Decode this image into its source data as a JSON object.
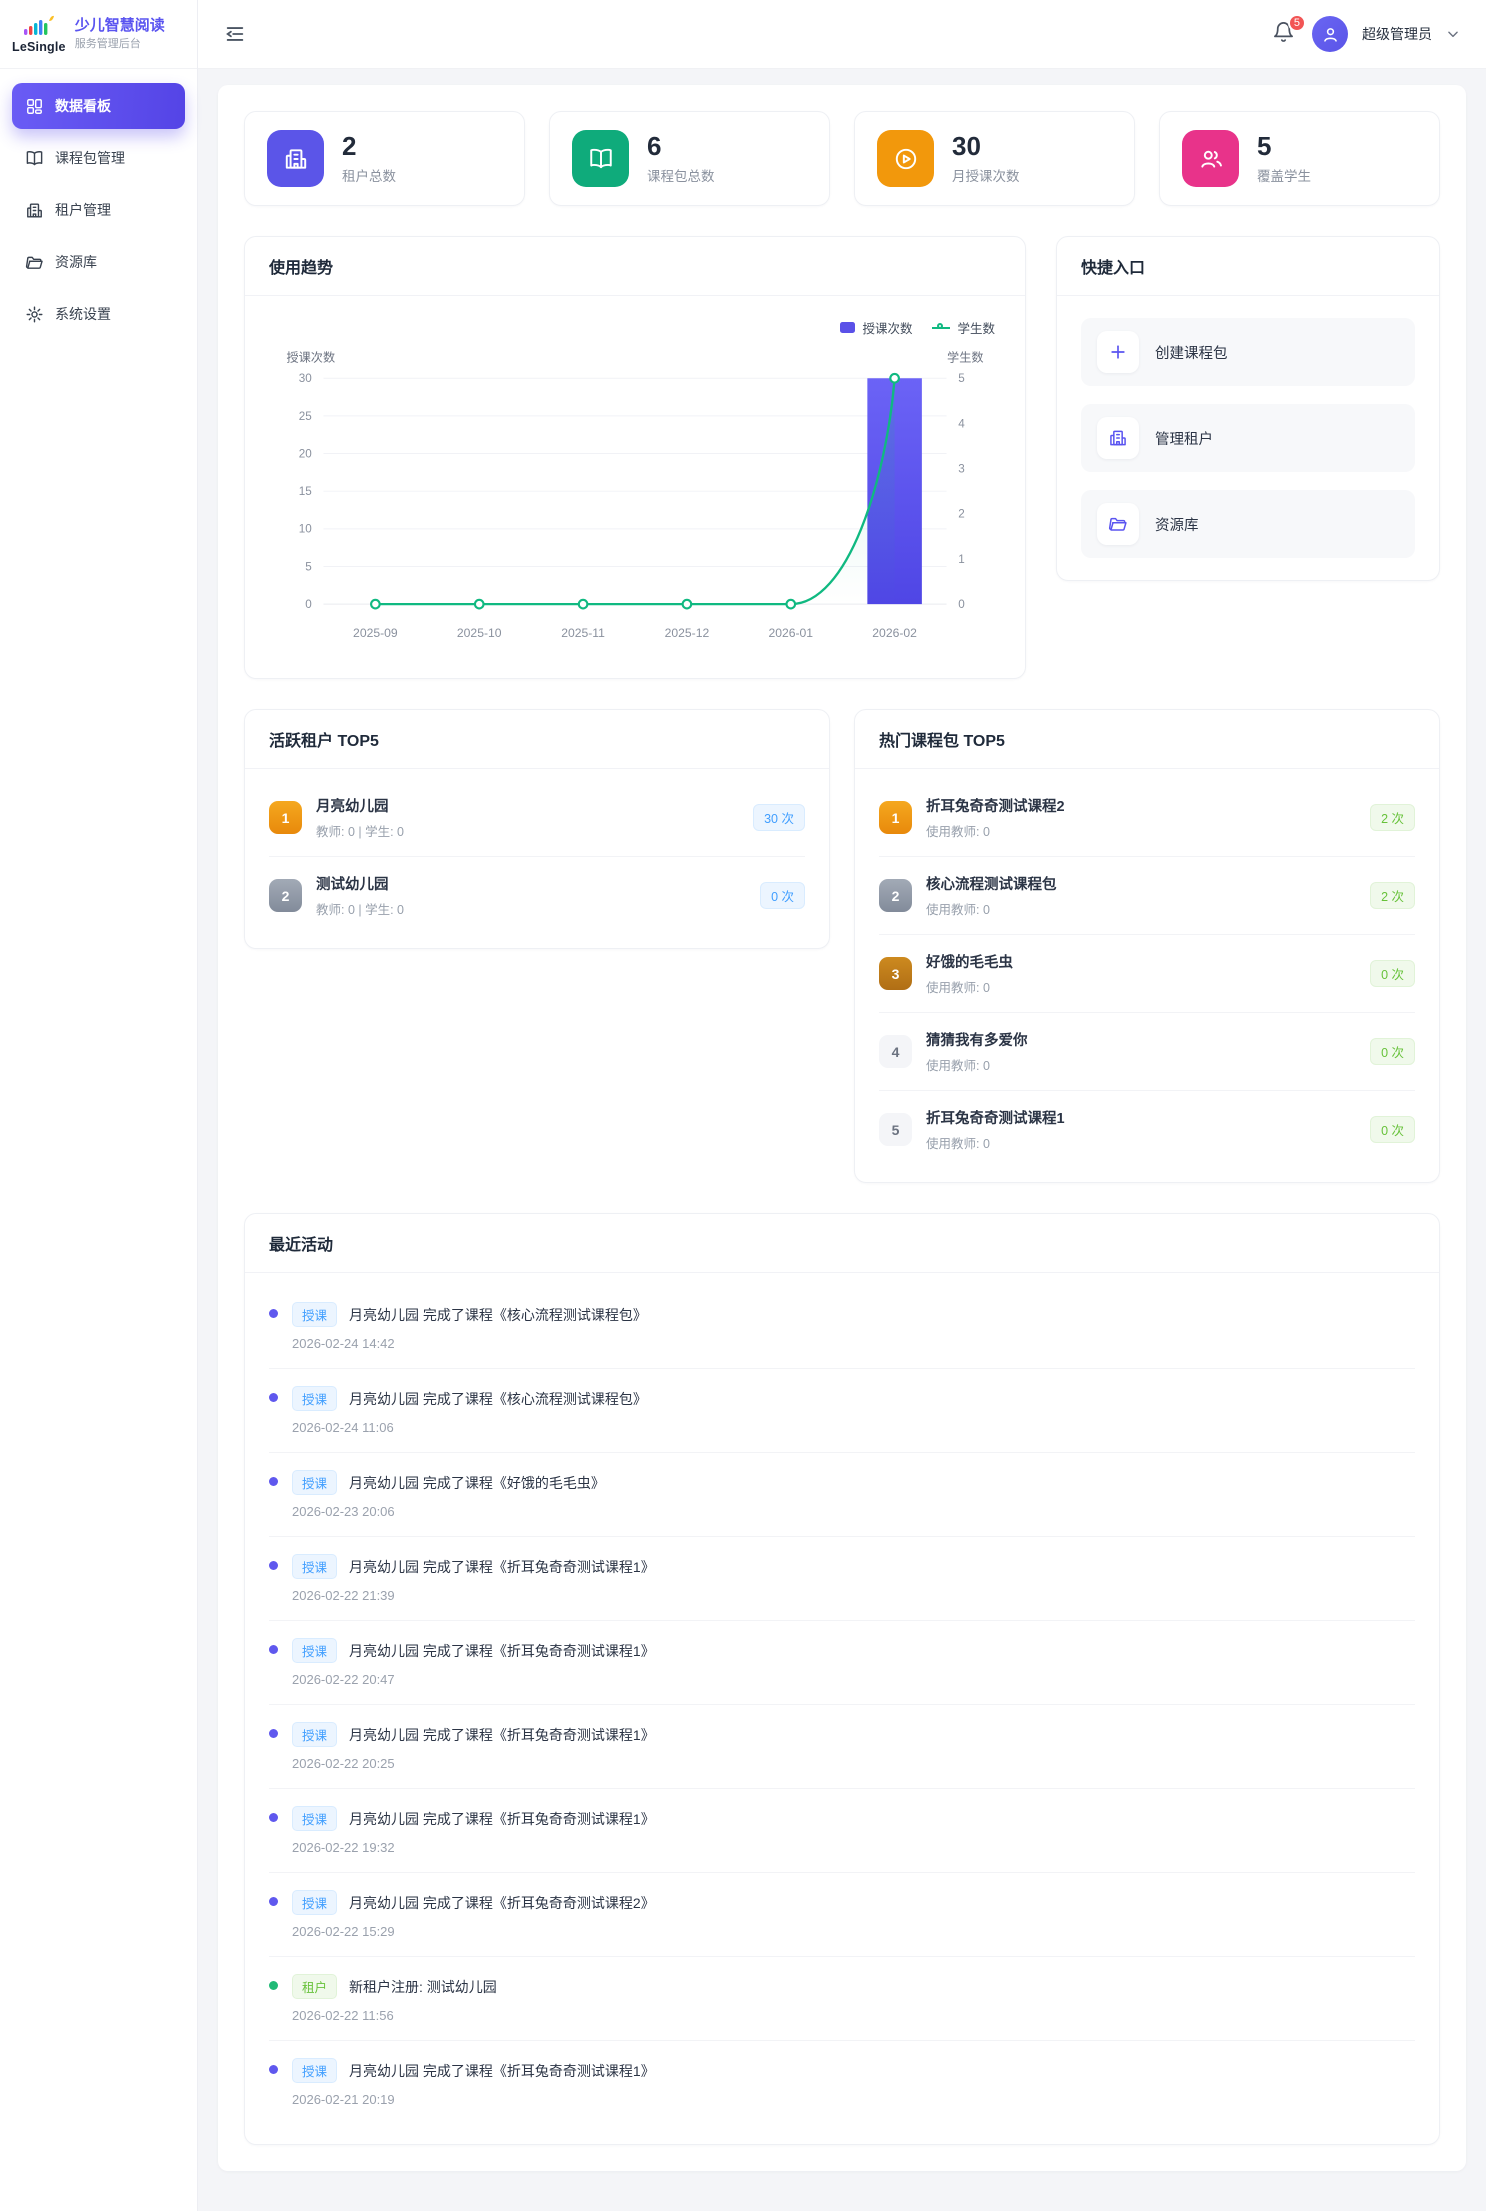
{
  "brand": {
    "logo_text": "LeSingle",
    "title": "少儿智慧阅读",
    "subtitle": "服务管理后台"
  },
  "sidebar": {
    "items": [
      {
        "label": "数据看板",
        "icon": "dashboard-grid",
        "active": true
      },
      {
        "label": "课程包管理",
        "icon": "book",
        "active": false
      },
      {
        "label": "租户管理",
        "icon": "building",
        "active": false
      },
      {
        "label": "资源库",
        "icon": "folder",
        "active": false
      },
      {
        "label": "系统设置",
        "icon": "gear",
        "active": false
      }
    ]
  },
  "header": {
    "notification_count": "5",
    "user_name": "超级管理员"
  },
  "stats": [
    {
      "value": "2",
      "label": "租户总数",
      "icon": "building",
      "color": "#5b55e8"
    },
    {
      "value": "6",
      "label": "课程包总数",
      "icon": "book",
      "color": "#0fab7b"
    },
    {
      "value": "30",
      "label": "月授课次数",
      "icon": "play-circle",
      "color": "#f2980c"
    },
    {
      "value": "5",
      "label": "覆盖学生",
      "icon": "users",
      "color": "#e8338a"
    }
  ],
  "usage_trend_title": "使用趋势",
  "chart_data": {
    "type": "bar",
    "title": "使用趋势",
    "categories": [
      "2025-09",
      "2025-10",
      "2025-11",
      "2025-12",
      "2026-01",
      "2026-02"
    ],
    "series": [
      {
        "name": "授课次数",
        "type": "bar",
        "axis": "left",
        "color": "#5a51e8",
        "values": [
          0,
          0,
          0,
          0,
          0,
          30
        ]
      },
      {
        "name": "学生数",
        "type": "line",
        "axis": "right",
        "color": "#10b981",
        "values": [
          0,
          0,
          0,
          0,
          0,
          5
        ]
      }
    ],
    "left_axis": {
      "label": "授课次数",
      "ticks": [
        0,
        5,
        10,
        15,
        20,
        25,
        30
      ],
      "max": 30
    },
    "right_axis": {
      "label": "学生数",
      "ticks": [
        0,
        1,
        2,
        3,
        4,
        5
      ],
      "max": 5
    },
    "legend_position": "top-right",
    "grid": true
  },
  "quick_entry": {
    "title": "快捷入口",
    "items": [
      {
        "label": "创建课程包",
        "icon": "plus"
      },
      {
        "label": "管理租户",
        "icon": "building"
      },
      {
        "label": "资源库",
        "icon": "folder"
      }
    ]
  },
  "active_tenants": {
    "title": "活跃租户 TOP5",
    "items": [
      {
        "rank": "1",
        "name": "月亮幼儿园",
        "meta": "教师: 0 | 学生: 0",
        "count": "30 次"
      },
      {
        "rank": "2",
        "name": "测试幼儿园",
        "meta": "教师: 0 | 学生: 0",
        "count": "0 次"
      }
    ]
  },
  "hot_packages": {
    "title": "热门课程包 TOP5",
    "items": [
      {
        "rank": "1",
        "name": "折耳兔奇奇测试课程2",
        "meta": "使用教师: 0",
        "count": "2 次"
      },
      {
        "rank": "2",
        "name": "核心流程测试课程包",
        "meta": "使用教师: 0",
        "count": "2 次"
      },
      {
        "rank": "3",
        "name": "好饿的毛毛虫",
        "meta": "使用教师: 0",
        "count": "0 次"
      },
      {
        "rank": "4",
        "name": "猜猜我有多爱你",
        "meta": "使用教师: 0",
        "count": "0 次"
      },
      {
        "rank": "5",
        "name": "折耳兔奇奇测试课程1",
        "meta": "使用教师: 0",
        "count": "0 次"
      }
    ]
  },
  "recent_activity": {
    "title": "最近活动",
    "items": [
      {
        "badge": "授课",
        "type": "lesson",
        "text": "月亮幼儿园 完成了课程《核心流程测试课程包》",
        "time": "2026-02-24 14:42"
      },
      {
        "badge": "授课",
        "type": "lesson",
        "text": "月亮幼儿园 完成了课程《核心流程测试课程包》",
        "time": "2026-02-24 11:06"
      },
      {
        "badge": "授课",
        "type": "lesson",
        "text": "月亮幼儿园 完成了课程《好饿的毛毛虫》",
        "time": "2026-02-23 20:06"
      },
      {
        "badge": "授课",
        "type": "lesson",
        "text": "月亮幼儿园 完成了课程《折耳兔奇奇测试课程1》",
        "time": "2026-02-22 21:39"
      },
      {
        "badge": "授课",
        "type": "lesson",
        "text": "月亮幼儿园 完成了课程《折耳兔奇奇测试课程1》",
        "time": "2026-02-22 20:47"
      },
      {
        "badge": "授课",
        "type": "lesson",
        "text": "月亮幼儿园 完成了课程《折耳兔奇奇测试课程1》",
        "time": "2026-02-22 20:25"
      },
      {
        "badge": "授课",
        "type": "lesson",
        "text": "月亮幼儿园 完成了课程《折耳兔奇奇测试课程1》",
        "time": "2026-02-22 19:32"
      },
      {
        "badge": "授课",
        "type": "lesson",
        "text": "月亮幼儿园 完成了课程《折耳兔奇奇测试课程2》",
        "time": "2026-02-22 15:29"
      },
      {
        "badge": "租户",
        "type": "tenant",
        "text": "新租户注册: 测试幼儿园",
        "time": "2026-02-22 11:56"
      },
      {
        "badge": "授课",
        "type": "lesson",
        "text": "月亮幼儿园 完成了课程《折耳兔奇奇测试课程1》",
        "time": "2026-02-21 20:19"
      }
    ]
  }
}
